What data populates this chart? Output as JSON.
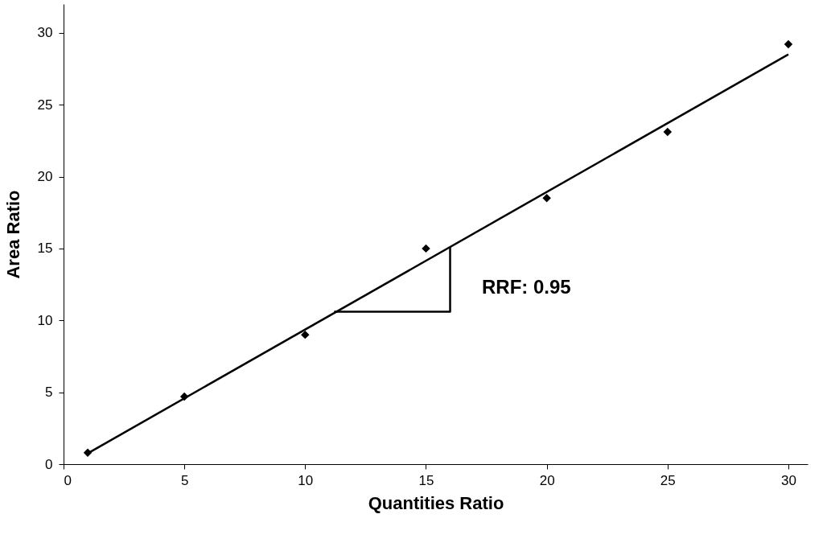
{
  "chart_data": {
    "type": "scatter",
    "xlabel": "Quantities Ratio",
    "ylabel": "Area Ratio",
    "xlim": [
      0,
      30.8
    ],
    "ylim": [
      0,
      32
    ],
    "xticks": [
      0,
      5,
      10,
      15,
      20,
      25,
      30
    ],
    "yticks": [
      0,
      5,
      10,
      15,
      20,
      25,
      30
    ],
    "grid": false,
    "marker": "diamond",
    "series": [
      {
        "color": "#000000",
        "x": [
          1,
          5,
          10,
          15,
          20,
          25,
          30
        ],
        "values": [
          0.8,
          4.7,
          9.0,
          15.0,
          18.5,
          23.1,
          29.2
        ]
      },
      {
        "type": "line",
        "color": "#000000",
        "marker": "none",
        "x": [
          1,
          30
        ],
        "values": [
          0.75,
          28.5
        ]
      },
      {
        "type": "line",
        "color": "#000000",
        "marker": "none",
        "x": [
          11.2,
          16,
          16
        ],
        "values": [
          10.6,
          10.6,
          15.1
        ]
      }
    ],
    "annotations": [
      "RRF: 0.95"
    ]
  }
}
